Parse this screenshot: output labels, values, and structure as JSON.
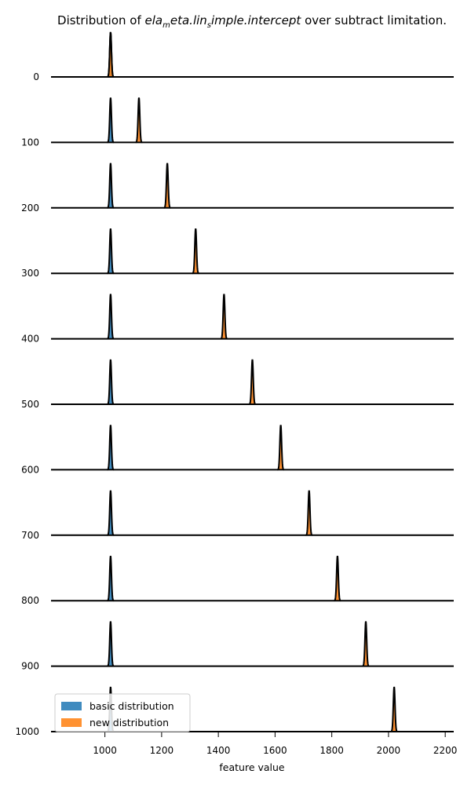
{
  "chart_data": {
    "type": "ridgeline",
    "title": {
      "prefix": "Distribution of ",
      "math": "ela",
      "math_sub1": "m",
      "math_mid": "eta.lin",
      "math_sub2": "s",
      "math_end": "imple.intercept",
      "suffix": " over subtract limitation."
    },
    "xlabel": "feature value",
    "x_ticks": [
      1000,
      1200,
      1400,
      1600,
      1800,
      2000,
      2200
    ],
    "xlim": [
      810,
      2230
    ],
    "y_ticks": [
      0,
      100,
      200,
      300,
      400,
      500,
      600,
      700,
      800,
      900,
      1000
    ],
    "series": [
      {
        "name": "basic distribution",
        "color": "#1f77b4"
      },
      {
        "name": "new distribution",
        "color": "#ff7f0e"
      }
    ],
    "rows": [
      {
        "offset": 0,
        "basic_peak": 1020,
        "new_peak": 1020
      },
      {
        "offset": 100,
        "basic_peak": 1020,
        "new_peak": 1120
      },
      {
        "offset": 200,
        "basic_peak": 1020,
        "new_peak": 1220
      },
      {
        "offset": 300,
        "basic_peak": 1020,
        "new_peak": 1320
      },
      {
        "offset": 400,
        "basic_peak": 1020,
        "new_peak": 1420
      },
      {
        "offset": 500,
        "basic_peak": 1020,
        "new_peak": 1520
      },
      {
        "offset": 600,
        "basic_peak": 1020,
        "new_peak": 1620
      },
      {
        "offset": 700,
        "basic_peak": 1020,
        "new_peak": 1720
      },
      {
        "offset": 800,
        "basic_peak": 1020,
        "new_peak": 1820
      },
      {
        "offset": 900,
        "basic_peak": 1020,
        "new_peak": 1920
      },
      {
        "offset": 1000,
        "basic_peak": 1020,
        "new_peak": 2020
      }
    ],
    "peak_sd": 3,
    "legend_position": "lower-left",
    "grid": false
  }
}
